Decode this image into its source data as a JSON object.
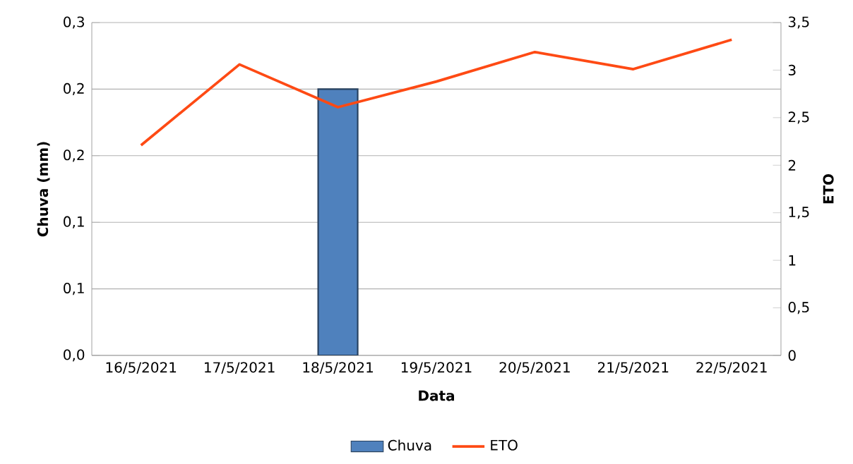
{
  "chart_data": {
    "type": "bar",
    "xlabel": "Data",
    "ylabel": "Chuva (mm)",
    "y2label": "ETO",
    "categories": [
      "16/5/2021",
      "17/5/2021",
      "18/5/2021",
      "19/5/2021",
      "20/5/2021",
      "21/5/2021",
      "22/5/2021"
    ],
    "series": [
      {
        "name": "Chuva",
        "color": "#4f81bd",
        "values": [
          null,
          null,
          0.24,
          null,
          null,
          null,
          null
        ]
      },
      {
        "name": "ETO",
        "type": "line",
        "axis": "y2",
        "color": "#fe4a14",
        "values": [
          2.21,
          3.06,
          2.61,
          2.88,
          3.19,
          3.01,
          3.32
        ]
      }
    ],
    "ylim": [
      0,
      0.3
    ],
    "yticks": [
      {
        "value": 0,
        "label": "0,0"
      },
      {
        "value": 0.06,
        "label": "0,1"
      },
      {
        "value": 0.12,
        "label": "0,1"
      },
      {
        "value": 0.18,
        "label": "0,2"
      },
      {
        "value": 0.24,
        "label": "0,2"
      },
      {
        "value": 0.3,
        "label": "0,3"
      }
    ],
    "y2lim": [
      0,
      3.5
    ],
    "y2ticks": [
      0,
      {
        "value": 0.5,
        "label": "0,5"
      },
      1,
      {
        "value": 1.5,
        "label": "1,5"
      },
      2,
      {
        "value": 2.5,
        "label": "2,5"
      },
      3,
      {
        "value": 3.5,
        "label": "3,5"
      }
    ],
    "grid": "y",
    "legend": "bottom"
  }
}
